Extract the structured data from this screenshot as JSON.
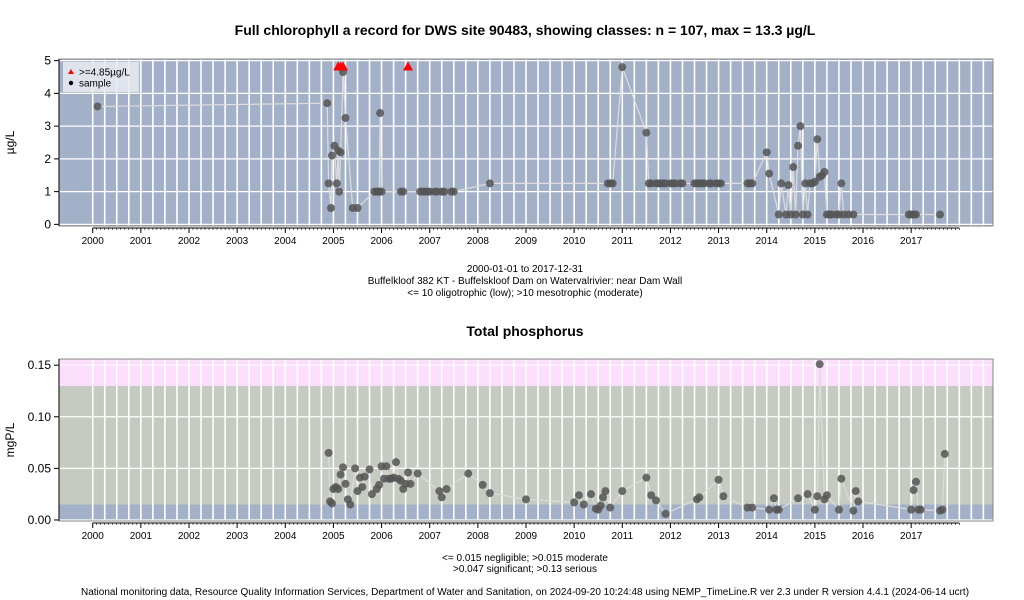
{
  "chart_data": [
    {
      "type": "scatter",
      "title": "Full chlorophyll a record for DWS site 90483, showing classes: n = 107, max = 13.3 µg/L",
      "xlabel": "",
      "ylabel": "µg/L",
      "xlim": [
        1999.3,
        2018.7
      ],
      "ylim": [
        -0.05,
        5.05
      ],
      "yticks": [
        0,
        1,
        2,
        3,
        4,
        5
      ],
      "xticks": [
        2000,
        2001,
        2002,
        2003,
        2004,
        2005,
        2006,
        2007,
        2008,
        2009,
        2010,
        2011,
        2012,
        2013,
        2014,
        2015,
        2016,
        2017
      ],
      "grid": true,
      "legend_position": "top-left",
      "legend": [
        {
          "label": ">=4.85µg/L",
          "marker": "triangle",
          "color": "#ff0000"
        },
        {
          "label": "sample",
          "marker": "circle",
          "color": "#000000"
        }
      ],
      "captions": [
        "2000-01-01 to 2017-12-31",
        "Buffelkloof 382 KT - Buffelskloof Dam on Watervalrivier: near Dam Wall",
        "<= 10 oligotrophic (low); >10 mesotrophic (moderate)"
      ],
      "series": [
        {
          "name": "sample",
          "marker": "circle",
          "color": "#555555",
          "x": [
            2000.1,
            2004.87,
            2004.9,
            2004.95,
            2004.97,
            2005.02,
            2005.07,
            2005.1,
            2005.12,
            2005.15,
            2005.2,
            2005.25,
            2005.4,
            2005.5,
            2005.85,
            2005.9,
            2005.93,
            2005.95,
            2005.97,
            2006.0,
            2006.4,
            2006.45,
            2006.8,
            2006.85,
            2006.9,
            2006.95,
            2007.0,
            2007.1,
            2007.15,
            2007.25,
            2007.3,
            2007.45,
            2007.5,
            2008.25,
            2010.7,
            2010.75,
            2010.8,
            2011.0,
            2011.5,
            2011.55,
            2011.6,
            2011.7,
            2011.75,
            2011.8,
            2011.85,
            2011.9,
            2012.0,
            2012.05,
            2012.1,
            2012.2,
            2012.25,
            2012.5,
            2012.55,
            2012.6,
            2012.65,
            2012.7,
            2012.8,
            2012.85,
            2012.95,
            2013.0,
            2013.05,
            2013.6,
            2013.65,
            2013.7,
            2014.0,
            2014.05,
            2014.25,
            2014.3,
            2014.4,
            2014.45,
            2014.5,
            2014.55,
            2014.6,
            2014.65,
            2014.7,
            2014.75,
            2014.8,
            2014.85,
            2014.9,
            2014.95,
            2015.0,
            2015.05,
            2015.1,
            2015.15,
            2015.2,
            2015.25,
            2015.3,
            2015.35,
            2015.45,
            2015.5,
            2015.55,
            2015.6,
            2015.7,
            2015.8,
            2016.95,
            2017.0,
            2017.05,
            2017.1,
            2017.6
          ],
          "y": [
            3.6,
            3.7,
            1.25,
            0.5,
            2.1,
            2.4,
            1.25,
            2.25,
            1.0,
            2.2,
            4.65,
            3.25,
            0.5,
            0.5,
            1.0,
            1.0,
            1.0,
            1.0,
            3.4,
            1.0,
            1.0,
            1.0,
            1.0,
            1.0,
            1.0,
            1.0,
            1.0,
            1.0,
            1.0,
            1.0,
            1.0,
            1.0,
            1.0,
            1.25,
            1.25,
            1.25,
            1.25,
            4.8,
            2.8,
            1.25,
            1.25,
            1.25,
            1.25,
            1.25,
            1.25,
            1.25,
            1.25,
            1.25,
            1.25,
            1.25,
            1.25,
            1.25,
            1.25,
            1.25,
            1.25,
            1.25,
            1.25,
            1.25,
            1.25,
            1.25,
            1.25,
            1.25,
            1.25,
            1.25,
            2.2,
            1.55,
            0.3,
            1.25,
            0.3,
            1.2,
            0.3,
            1.75,
            0.3,
            2.4,
            3.0,
            0.3,
            1.25,
            0.3,
            1.25,
            1.25,
            1.3,
            2.6,
            1.45,
            1.5,
            1.6,
            0.3,
            0.3,
            0.3,
            0.3,
            0.3,
            1.25,
            0.3,
            0.3,
            0.3,
            0.3,
            0.3,
            0.3,
            0.3,
            0.3
          ]
        },
        {
          "name": ">=4.85µg/L",
          "marker": "triangle",
          "color": "#ff0000",
          "x": [
            2005.1,
            2005.15,
            2005.2,
            2006.55
          ],
          "y": [
            4.82,
            4.82,
            4.82,
            4.82
          ]
        }
      ]
    },
    {
      "type": "scatter",
      "title": "Total phosphorus",
      "xlabel": "",
      "ylabel": "mgP/L",
      "xlim": [
        1999.3,
        2018.7
      ],
      "ylim": [
        -0.001,
        0.156
      ],
      "yticks": [
        0.0,
        0.05,
        0.1,
        0.15
      ],
      "ytick_labels": [
        "0.00",
        "0.05",
        "0.10",
        "0.15"
      ],
      "xticks": [
        2000,
        2001,
        2002,
        2003,
        2004,
        2005,
        2006,
        2007,
        2008,
        2009,
        2010,
        2011,
        2012,
        2013,
        2014,
        2015,
        2016,
        2017
      ],
      "grid": true,
      "bands": [
        {
          "from": -0.001,
          "to": 0.015,
          "color": "#a3b1c8"
        },
        {
          "from": 0.015,
          "to": 0.13,
          "color": "#c5cbc0"
        },
        {
          "from": 0.13,
          "to": 0.156,
          "color": "#fbdefb"
        }
      ],
      "captions": [
        "<= 0.015 negligible; >0.015 moderate",
        ">0.047 significant; >0.13 serious"
      ],
      "series": [
        {
          "name": "sample",
          "marker": "circle",
          "color": "#555555",
          "x": [
            2004.9,
            2004.93,
            2004.97,
            2005.0,
            2005.05,
            2005.1,
            2005.15,
            2005.2,
            2005.25,
            2005.3,
            2005.35,
            2005.45,
            2005.5,
            2005.55,
            2005.6,
            2005.65,
            2005.75,
            2005.8,
            2005.9,
            2005.95,
            2006.0,
            2006.05,
            2006.1,
            2006.15,
            2006.2,
            2006.25,
            2006.3,
            2006.35,
            2006.4,
            2006.45,
            2006.5,
            2006.55,
            2006.6,
            2006.75,
            2007.2,
            2007.25,
            2007.35,
            2007.8,
            2008.1,
            2008.25,
            2009.0,
            2010.0,
            2010.1,
            2010.2,
            2010.35,
            2010.45,
            2010.5,
            2010.55,
            2010.6,
            2010.65,
            2010.75,
            2011.0,
            2011.5,
            2011.6,
            2011.7,
            2011.9,
            2012.55,
            2012.6,
            2013.0,
            2013.1,
            2013.6,
            2013.7,
            2014.05,
            2014.15,
            2014.2,
            2014.25,
            2014.65,
            2014.85,
            2015.0,
            2015.05,
            2015.1,
            2015.2,
            2015.25,
            2015.5,
            2015.55,
            2015.8,
            2015.85,
            2015.9,
            2017.0,
            2017.05,
            2017.1,
            2017.15,
            2017.2,
            2017.6,
            2017.65,
            2017.7
          ],
          "y": [
            0.065,
            0.018,
            0.016,
            0.03,
            0.032,
            0.03,
            0.044,
            0.051,
            0.035,
            0.02,
            0.015,
            0.05,
            0.028,
            0.041,
            0.032,
            0.042,
            0.049,
            0.025,
            0.03,
            0.034,
            0.052,
            0.04,
            0.052,
            0.04,
            0.04,
            0.041,
            0.056,
            0.04,
            0.038,
            0.03,
            0.035,
            0.046,
            0.035,
            0.045,
            0.028,
            0.022,
            0.03,
            0.045,
            0.034,
            0.026,
            0.02,
            0.017,
            0.024,
            0.015,
            0.025,
            0.011,
            0.01,
            0.014,
            0.022,
            0.028,
            0.012,
            0.028,
            0.041,
            0.024,
            0.019,
            0.006,
            0.02,
            0.022,
            0.039,
            0.023,
            0.012,
            0.012,
            0.01,
            0.021,
            0.01,
            0.01,
            0.021,
            0.025,
            0.01,
            0.023,
            0.151,
            0.02,
            0.024,
            0.01,
            0.04,
            0.009,
            0.028,
            0.018,
            0.01,
            0.029,
            0.037,
            0.01,
            0.01,
            0.009,
            0.01,
            0.064
          ]
        }
      ]
    }
  ],
  "footer": "National monitoring data, Resource Quality Information Services, Department of Water and Sanitation, on 2024-09-20 10:24:48 using NEMP_TimeLine.R ver 2.3 under R version 4.4.1 (2024-06-14 ucrt)"
}
